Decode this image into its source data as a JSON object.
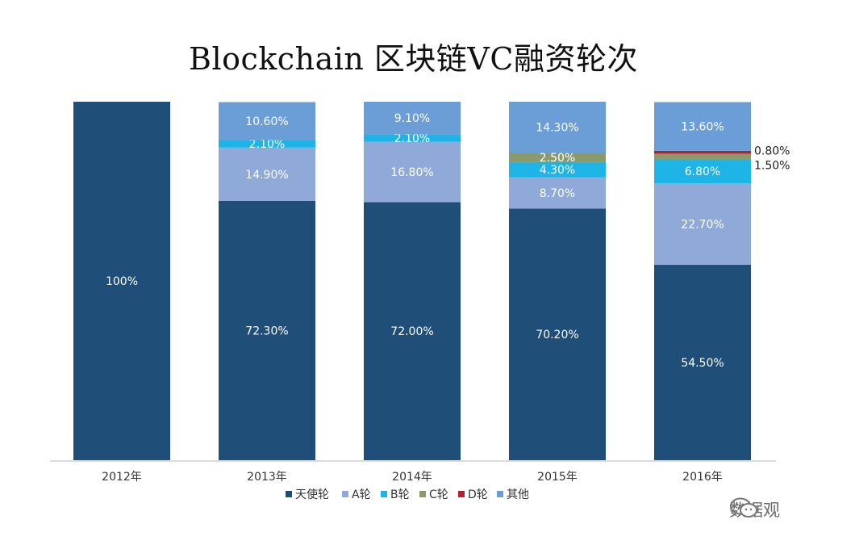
{
  "chart_data": {
    "type": "bar",
    "stacked": true,
    "normalized": true,
    "title": "Blockchain 区块链VC融资轮次",
    "xlabel": "",
    "ylabel": "",
    "ylim": [
      0,
      100
    ],
    "grid": false,
    "legend_position": "bottom",
    "categories": [
      "2012年",
      "2013年",
      "2014年",
      "2015年",
      "2016年"
    ],
    "series": [
      {
        "name": "天使轮",
        "color": "#1f4e79",
        "values": [
          100,
          72.3,
          72.0,
          70.2,
          54.5
        ],
        "labels": [
          "100%",
          "72.30%",
          "72.00%",
          "70.20%",
          "54.50%"
        ]
      },
      {
        "name": "A轮",
        "color": "#8fa9d8",
        "values": [
          0,
          14.9,
          16.8,
          8.7,
          22.7
        ],
        "labels": [
          "",
          "14.90%",
          "16.80%",
          "8.70%",
          "22.70%"
        ]
      },
      {
        "name": "B轮",
        "color": "#1fb4e8",
        "values": [
          0,
          2.1,
          2.1,
          4.3,
          6.8
        ],
        "labels": [
          "",
          "2.10%",
          "2.10%",
          "4.30%",
          "6.80%"
        ]
      },
      {
        "name": "C轮",
        "color": "#8a9a6a",
        "values": [
          0,
          0,
          0,
          2.5,
          1.5
        ],
        "labels": [
          "",
          "",
          "",
          "2.50%",
          "1.50%"
        ]
      },
      {
        "name": "D轮",
        "color": "#b22234",
        "values": [
          0,
          0,
          0,
          0,
          0.8
        ],
        "labels": [
          "",
          "",
          "",
          "",
          "0.80%"
        ]
      },
      {
        "name": "其他",
        "color": "#6b9ed6",
        "values": [
          0,
          10.6,
          9.1,
          14.3,
          13.6
        ],
        "labels": [
          "",
          "10.60%",
          "9.10%",
          "14.30%",
          "13.60%"
        ]
      }
    ]
  },
  "watermark": {
    "text": "数据观"
  }
}
